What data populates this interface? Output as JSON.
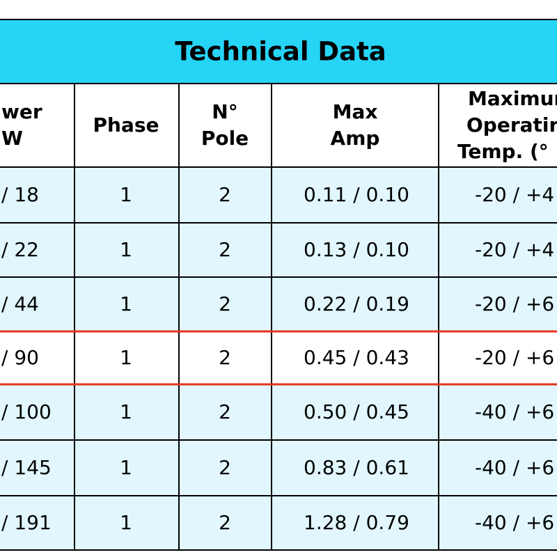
{
  "header": {
    "title": "Technical Data"
  },
  "table": {
    "columns": [
      [
        "wer",
        "W"
      ],
      [
        "Phase"
      ],
      [
        "N°",
        "Pole"
      ],
      [
        "Max",
        "Amp"
      ],
      [
        "Maximur",
        "Operatir",
        "Temp. (°"
      ]
    ],
    "rows": [
      [
        "/ 18",
        "1",
        "2",
        "0.11 / 0.10",
        "-20 / +4"
      ],
      [
        "/ 22",
        "1",
        "2",
        "0.13 / 0.10",
        "-20 / +4"
      ],
      [
        "/ 44",
        "1",
        "2",
        "0.22 / 0.19",
        "-20 / +6"
      ],
      [
        "/ 90",
        "1",
        "2",
        "0.45 / 0.43",
        "-20 / +6"
      ],
      [
        "/ 100",
        "1",
        "2",
        "0.50 / 0.45",
        "-40 / +6"
      ],
      [
        "/ 145",
        "1",
        "2",
        "0.83 / 0.61",
        "-40 / +6"
      ],
      [
        "/ 191",
        "1",
        "2",
        "1.28 / 0.79",
        "-40 / +6"
      ]
    ]
  }
}
